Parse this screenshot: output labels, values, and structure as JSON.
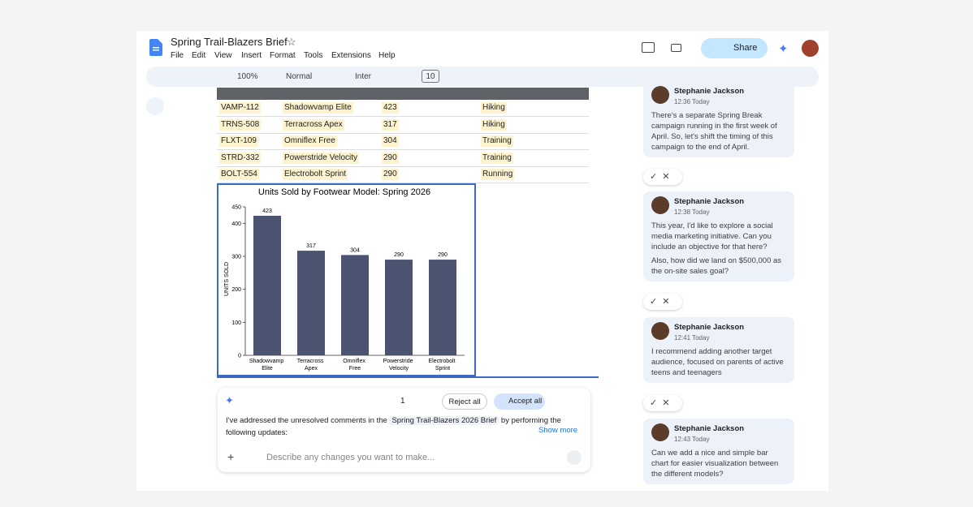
{
  "header": {
    "title": "Spring Trail-Blazers Brief",
    "menu": [
      "File",
      "Edit",
      "View",
      "Insert",
      "Format",
      "Tools",
      "Extensions",
      "Help"
    ],
    "share": "Share"
  },
  "toolbar": {
    "zoom": "100%",
    "style": "Normal",
    "font": "Inter",
    "font_size": "10"
  },
  "table": {
    "rows": [
      [
        "VAMP-112",
        "Shadowvamp Elite",
        423,
        "Hiking"
      ],
      [
        "TRNS-508",
        "Terracross Apex",
        317,
        "Hiking"
      ],
      [
        "FLXT-109",
        "Omniflex Free",
        304,
        "Training"
      ],
      [
        "STRD-332",
        "Powerstride Velocity",
        290,
        "Training"
      ],
      [
        "BOLT-554",
        "Electrobolt Sprint",
        290,
        "Running"
      ]
    ]
  },
  "chart_data": {
    "type": "bar",
    "title": "Units Sold by Footwear Model: Spring 2026",
    "y_label": "UNITS SOLD",
    "categories": [
      "Shadowvamp Elite",
      "Terracross Apex",
      "Omniflex Free",
      "Powerstride Velocity",
      "Electrobolt Sprint"
    ],
    "values": [
      423,
      317,
      304,
      290,
      290
    ],
    "color": "#4a5370",
    "ylim": [
      0,
      450
    ],
    "yticks": [
      0,
      100,
      200,
      300,
      400,
      450
    ]
  },
  "assistant": {
    "link_count": "1",
    "reject": "Reject all",
    "accept": "Accept all",
    "message_start": "I've addressed the unresolved comments in the",
    "doc_chip": "Spring Trail-Blazers 2026 Brief",
    "message_end": "by performing the following updates:",
    "show_more": "Show more",
    "placeholder": "Describe any changes you want to make..."
  },
  "comments": [
    {
      "author": "Stephanie Jackson",
      "time": "12:36 Today",
      "paragraphs": [
        "There's a separate Spring Break campaign running in the first week of April. So, let's shift the timing of this campaign to the end of April."
      ]
    },
    {
      "author": "Stephanie Jackson",
      "time": "12:38 Today",
      "paragraphs": [
        "This year, I'd like to explore a social media marketing initiative. Can you include an objective for that here?",
        "Also, how did we land on $500,000 as the on-site sales goal?"
      ]
    },
    {
      "author": "Stephanie Jackson",
      "time": "12:41 Today",
      "paragraphs": [
        "I recommend adding another target audience, focused on parents of active teens and teenagers"
      ]
    },
    {
      "author": "Stephanie Jackson",
      "time": "12:43 Today",
      "paragraphs": [
        "Can we add a nice and simple bar chart for easier visualization between the different models?"
      ]
    }
  ]
}
